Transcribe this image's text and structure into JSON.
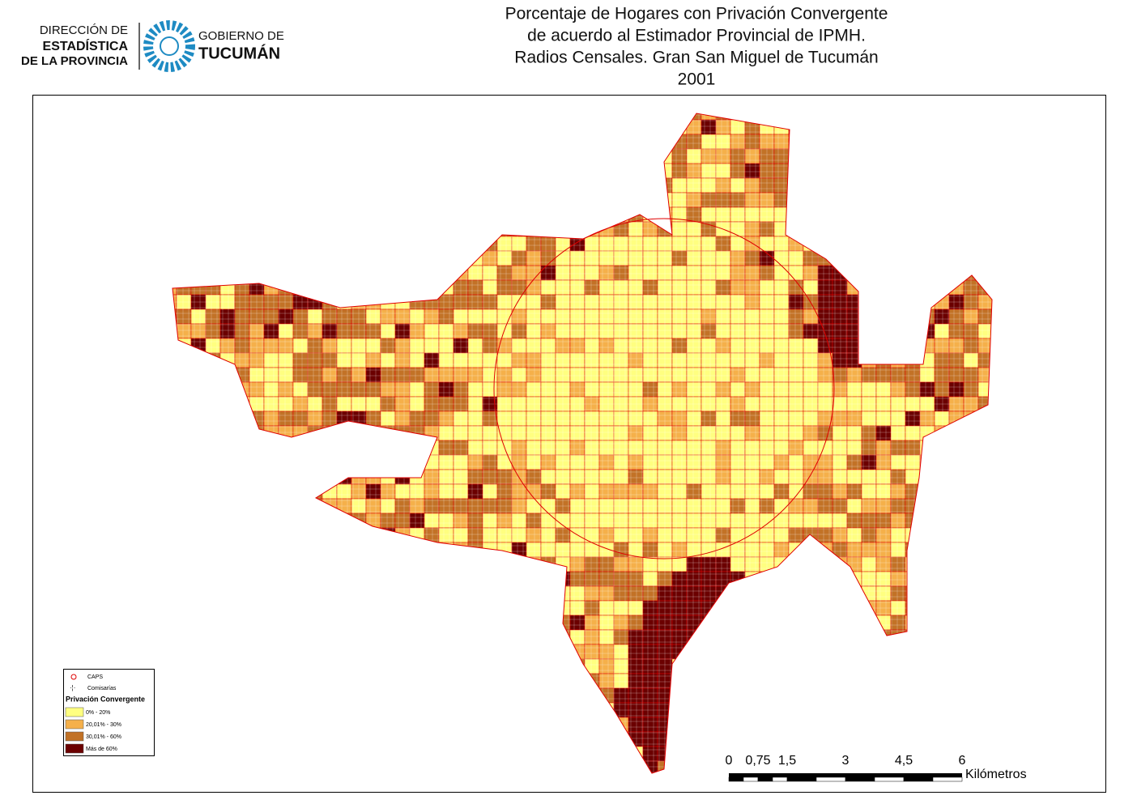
{
  "logo": {
    "agency_lines": [
      "DIRECCIÓN DE",
      "ESTADÍSTICA",
      "DE LA PROVINCIA"
    ],
    "government_lines": [
      "GOBIERNO DE",
      "TUCUMÁN"
    ]
  },
  "title_lines": [
    "Porcentaje de Hogares con Privación Convergente",
    "de acuerdo al Estimador Provincial de IPMH.",
    "Radios Censales. Gran San Miguel de Tucumán",
    "2001"
  ],
  "legend": {
    "symbols": [
      "CAPS",
      "Comisarías"
    ],
    "heading": "Privación Convergente",
    "classes": [
      {
        "label": "0% - 20%",
        "color": "#ffff80"
      },
      {
        "label": "20,01% - 30%",
        "color": "#f5b04a"
      },
      {
        "label": "30,01% - 60%",
        "color": "#c27226"
      },
      {
        "label": "Más de 60%",
        "color": "#6b0000"
      }
    ]
  },
  "scale_bar": {
    "labels": [
      "0",
      "0,75",
      "1,5",
      "3",
      "4,5",
      "6"
    ],
    "unit": "Kilómetros"
  }
}
